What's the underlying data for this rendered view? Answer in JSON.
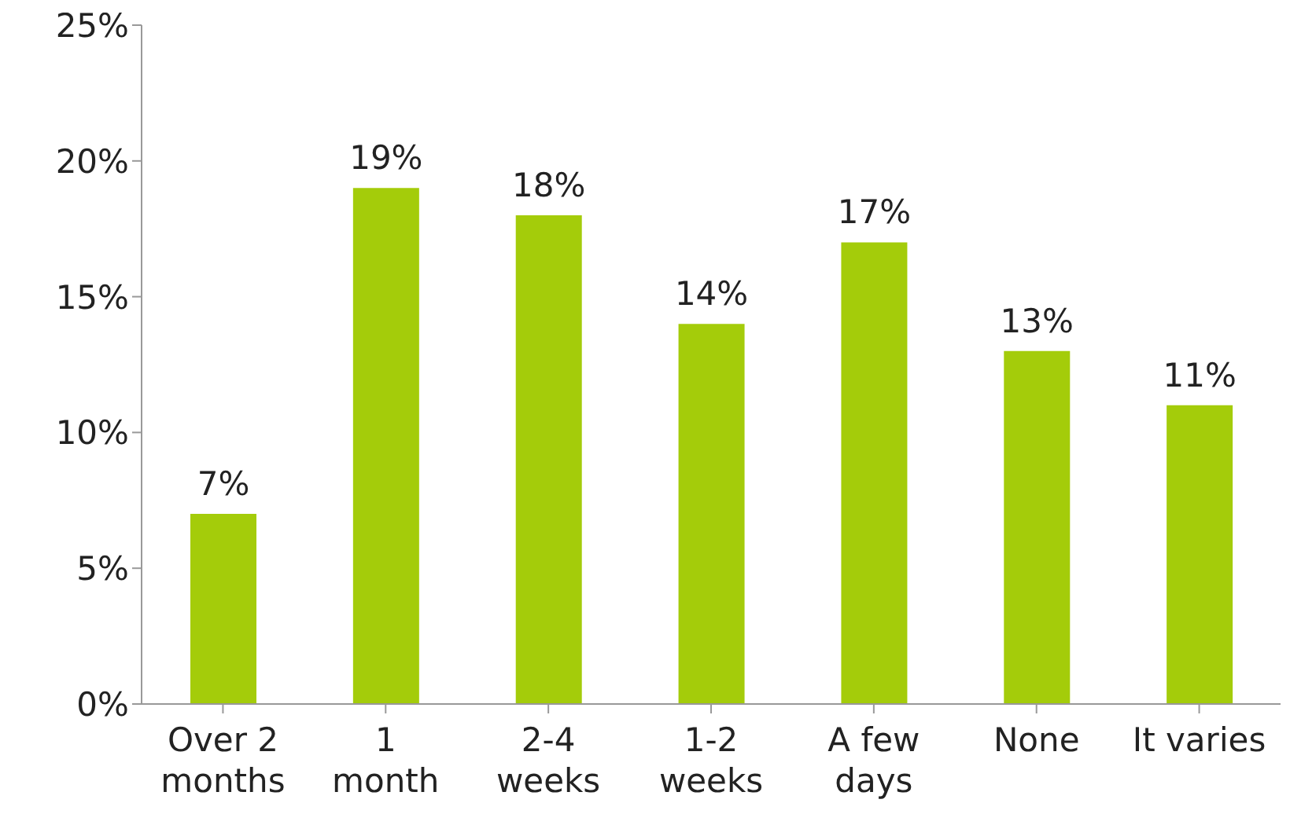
{
  "chart_data": {
    "type": "bar",
    "categories": [
      "Over 2\nmonths",
      "1\nmonth",
      "2-4\nweeks",
      "1-2\nweeks",
      "A few\ndays",
      "None",
      "It varies"
    ],
    "values": [
      7,
      19,
      18,
      14,
      17,
      13,
      11
    ],
    "value_labels": [
      "7%",
      "19%",
      "18%",
      "14%",
      "17%",
      "13%",
      "11%"
    ],
    "color": "#a4cc0a",
    "ylim": [
      0,
      25
    ],
    "yticks": [
      {
        "value": 0,
        "label": "0%"
      },
      {
        "value": 5,
        "label": "5%"
      },
      {
        "value": 10,
        "label": "10%"
      },
      {
        "value": 15,
        "label": "15%"
      },
      {
        "value": 20,
        "label": "20%"
      },
      {
        "value": 25,
        "label": "25%"
      }
    ],
    "grid": false,
    "legend": false
  }
}
